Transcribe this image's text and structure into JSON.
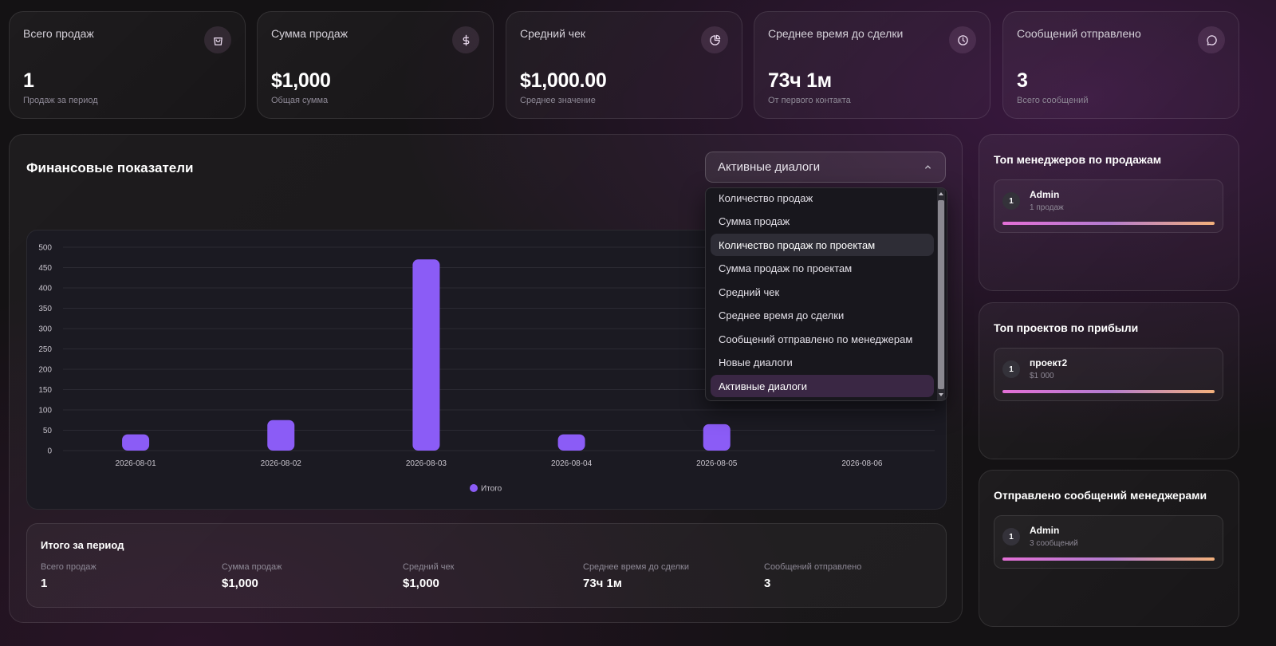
{
  "stats": [
    {
      "label": "Всего продаж",
      "value": "1",
      "sub": "Продаж за период",
      "icon": "bag-icon"
    },
    {
      "label": "Сумма продаж",
      "value": "$1,000",
      "sub": "Общая сумма",
      "icon": "dollar-icon"
    },
    {
      "label": "Средний чек",
      "value": "$1,000.00",
      "sub": "Среднее значение",
      "icon": "pie-chart-icon"
    },
    {
      "label": "Среднее время до сделки",
      "value": "73ч 1м",
      "sub": "От первого контакта",
      "icon": "clock-icon"
    },
    {
      "label": "Сообщений отправлено",
      "value": "3",
      "sub": "Всего сообщений",
      "icon": "message-icon"
    }
  ],
  "finance": {
    "title": "Финансовые показатели",
    "select_value": "Активные диалоги"
  },
  "dropdown": {
    "options": [
      "Количество продаж",
      "Сумма продаж",
      "Количество продаж по проектам",
      "Сумма продаж по проектам",
      "Средний чек",
      "Среднее время до сделки",
      "Сообщений отправлено по менеджерам",
      "Новые диалоги",
      "Активные диалоги"
    ],
    "hovered_index": 2,
    "selected_index": 8
  },
  "chart_data": {
    "type": "bar",
    "categories": [
      "2026-08-01",
      "2026-08-02",
      "2026-08-03",
      "2026-08-04",
      "2026-08-05",
      "2026-08-06"
    ],
    "series": [
      {
        "name": "Итого",
        "values": [
          40,
          75,
          470,
          40,
          65,
          0
        ]
      }
    ],
    "yticks": [
      0,
      50,
      100,
      150,
      200,
      250,
      300,
      350,
      400,
      450,
      500
    ],
    "ylim": [
      0,
      500
    ],
    "grid": true,
    "legend": "bottom",
    "bar_color": "#8b5cf6"
  },
  "summary": {
    "title": "Итого за период",
    "items": [
      {
        "label": "Всего продаж",
        "value": "1"
      },
      {
        "label": "Сумма продаж",
        "value": "$1,000"
      },
      {
        "label": "Средний чек",
        "value": "$1,000"
      },
      {
        "label": "Среднее время до сделки",
        "value": "73ч 1м"
      },
      {
        "label": "Сообщений отправлено",
        "value": "3"
      }
    ]
  },
  "side": {
    "managers": {
      "title": "Топ менеджеров по продажам",
      "rank": "1",
      "name": "Admin",
      "desc": "1 продаж"
    },
    "projects": {
      "title": "Топ проектов по прибыли",
      "rank": "1",
      "name": "проект2",
      "desc": "$1 000"
    },
    "messages": {
      "title": "Отправлено сообщений менеджерами",
      "rank": "1",
      "name": "Admin",
      "desc": "3 сообщений"
    }
  },
  "colors": {
    "accent": "#8b5cf6",
    "gradient_start": "#e36fd6",
    "gradient_end": "#f3b07b"
  }
}
